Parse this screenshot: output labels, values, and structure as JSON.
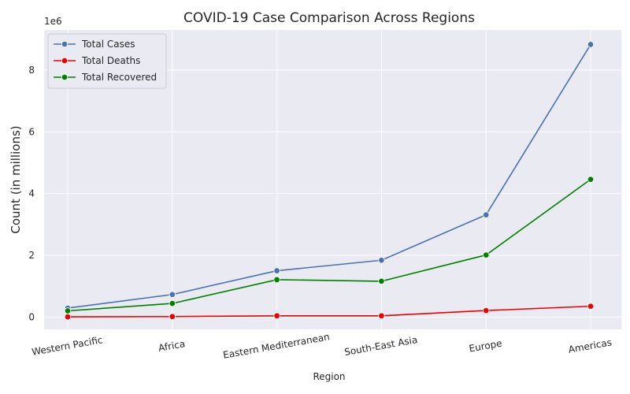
{
  "chart_data": {
    "type": "line",
    "title": "COVID-19 Case Comparison Across Regions",
    "xlabel": "Region",
    "ylabel": "Count (in millions)",
    "y_offset_label": "1e6",
    "categories": [
      "Western Pacific",
      "Africa",
      "Eastern Mediterranean",
      "South-East Asia",
      "Europe",
      "Americas"
    ],
    "ylim": [
      -400000,
      9300000
    ],
    "yticks": [
      0,
      2000000,
      4000000,
      6000000,
      8000000
    ],
    "ytick_labels": [
      "0",
      "2",
      "4",
      "6",
      "8"
    ],
    "grid": true,
    "legend_position": "top-left",
    "series": [
      {
        "name": "Total Cases",
        "color": "#4c72b0",
        "values": [
          290000,
          730000,
          1500000,
          1840000,
          3310000,
          8830000
        ]
      },
      {
        "name": "Total Deaths",
        "color": "#ee0000",
        "values": [
          7000,
          15000,
          40000,
          40000,
          210000,
          350000
        ]
      },
      {
        "name": "Total Recovered",
        "color": "#008000",
        "values": [
          200000,
          440000,
          1210000,
          1160000,
          2010000,
          4460000
        ]
      }
    ]
  }
}
